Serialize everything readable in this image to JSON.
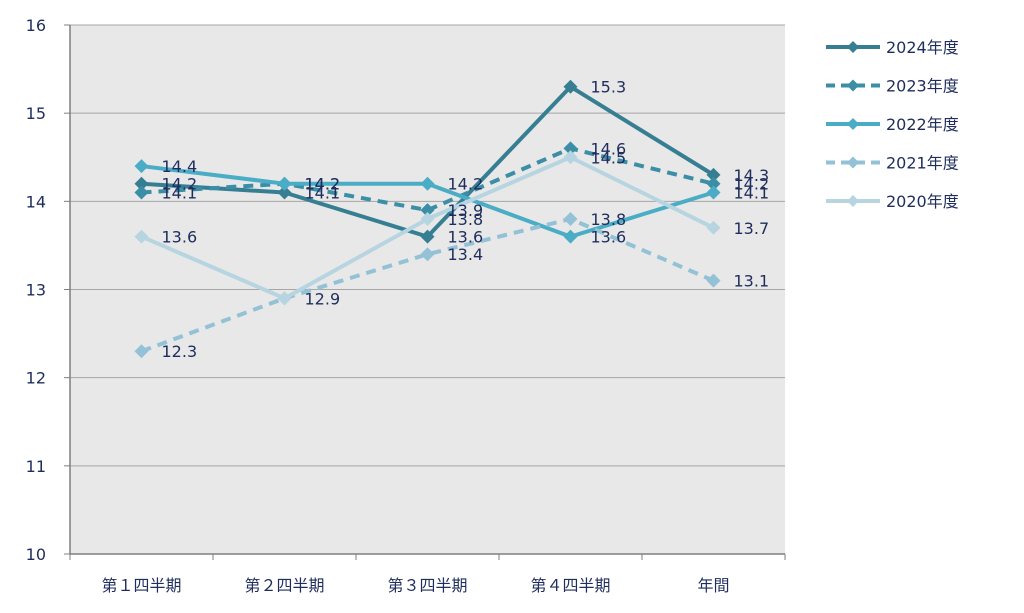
{
  "chart_data": {
    "type": "line",
    "title": "",
    "xlabel": "",
    "ylabel": "",
    "categories": [
      "第１四半期",
      "第２四半期",
      "第３四半期",
      "第４四半期",
      "年間"
    ],
    "ylim": [
      10,
      16
    ],
    "yticks": [
      10,
      11,
      12,
      13,
      14,
      15,
      16
    ],
    "grid": true,
    "legend_position": "right",
    "series": [
      {
        "name": "2024年度",
        "values": [
          14.2,
          14.1,
          13.6,
          15.3,
          14.3
        ],
        "color": "#367f93",
        "dash": "solid",
        "labels": [
          "14.2",
          "14.1",
          "13.6",
          "15.3",
          "14.3"
        ]
      },
      {
        "name": "2023年度",
        "values": [
          14.1,
          14.2,
          13.9,
          14.6,
          14.2
        ],
        "color": "#3b8ea6",
        "dash": "dashed",
        "labels": [
          "14.1",
          "14.2",
          "13.9",
          "14.6",
          "14.2"
        ]
      },
      {
        "name": "2022年度",
        "values": [
          14.4,
          14.2,
          14.2,
          13.6,
          14.1
        ],
        "color": "#4bacc6",
        "dash": "solid",
        "labels": [
          "14.4",
          "14.2",
          "14.2",
          "13.6",
          "14.1"
        ]
      },
      {
        "name": "2021年度",
        "values": [
          12.3,
          12.9,
          13.4,
          13.8,
          13.1
        ],
        "color": "#93c1d5",
        "dash": "dashed",
        "labels": [
          "12.3",
          "",
          "13.4",
          "13.8",
          "13.1"
        ]
      },
      {
        "name": "2020年度",
        "values": [
          13.6,
          12.9,
          13.8,
          14.5,
          13.7
        ],
        "color": "#b6d5e1",
        "dash": "solid",
        "labels": [
          "13.6",
          "12.9",
          "13.8",
          "14.5",
          "13.7"
        ]
      }
    ],
    "colors": {
      "plot_background": "#e8e8e8",
      "grid": "#a6a6a6",
      "axis": "#7f7f7f",
      "text": "#1f2d5c"
    }
  }
}
